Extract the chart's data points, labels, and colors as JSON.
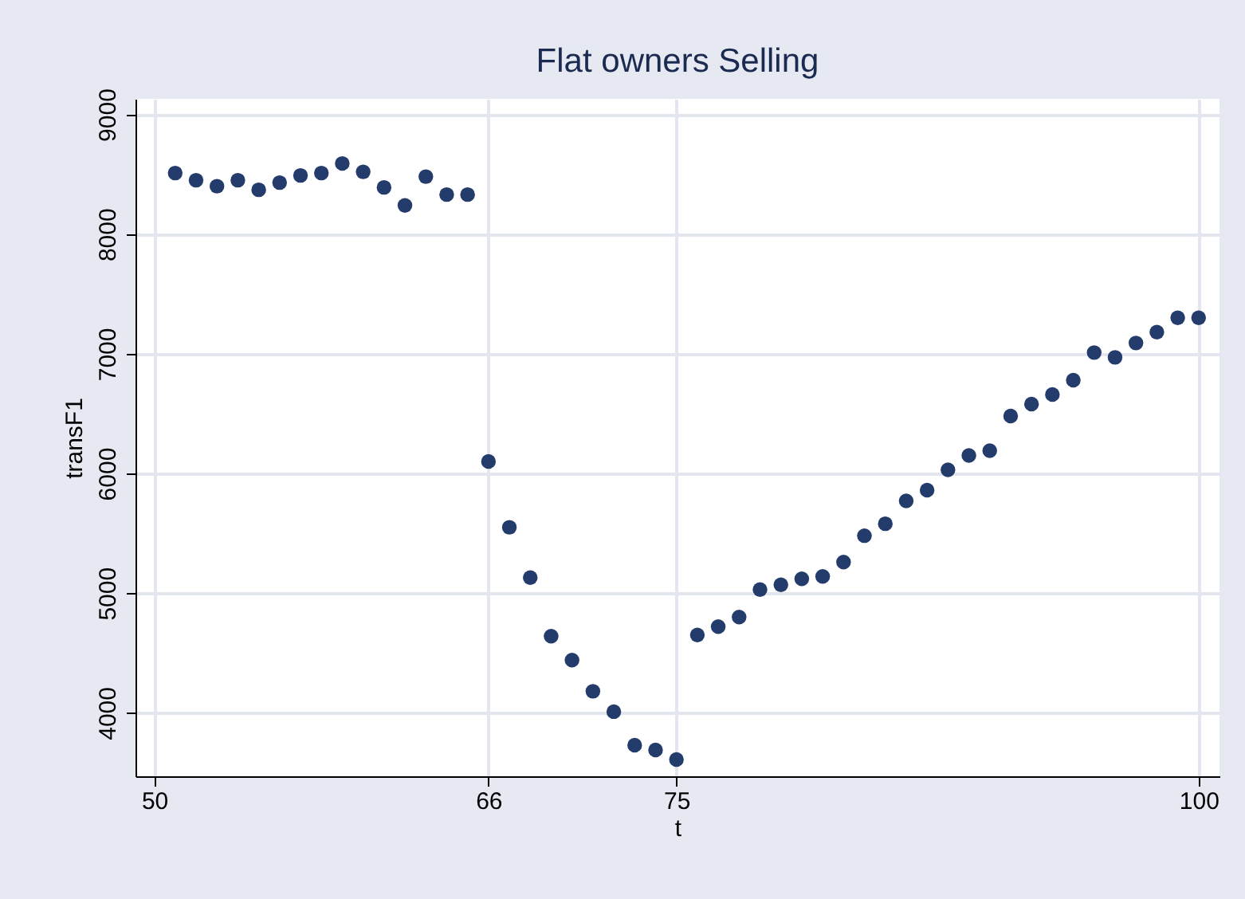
{
  "chart_data": {
    "type": "scatter",
    "title": "Flat owners Selling",
    "xlabel": "t",
    "ylabel": "transF1",
    "x": [
      51,
      52,
      53,
      54,
      55,
      56,
      57,
      58,
      59,
      60,
      61,
      62,
      63,
      64,
      65,
      66,
      67,
      68,
      69,
      70,
      71,
      72,
      73,
      74,
      75,
      76,
      77,
      78,
      79,
      80,
      81,
      82,
      83,
      84,
      85,
      86,
      87,
      88,
      89,
      90,
      91,
      92,
      93,
      94,
      95,
      96,
      97,
      98,
      99,
      100
    ],
    "series": [
      {
        "color": "#233c6b",
        "values": [
          8510,
          8450,
          8400,
          8450,
          8370,
          8430,
          8490,
          8510,
          8590,
          8520,
          8390,
          8240,
          8480,
          8330,
          8330,
          6100,
          5550,
          5130,
          4640,
          4440,
          4180,
          4010,
          3730,
          3690,
          3610,
          4650,
          4720,
          4800,
          5030,
          5070,
          5120,
          5140,
          5260,
          5480,
          5580,
          5770,
          5860,
          6030,
          6150,
          6190,
          6480,
          6580,
          6660,
          6780,
          7010,
          6970,
          7090,
          7180,
          7300,
          7300
        ]
      }
    ],
    "xlim": [
      49.1,
      101
    ],
    "ylim": [
      3470,
      9130
    ],
    "xticks": [
      50,
      66,
      75,
      100
    ],
    "yticks": [
      4000,
      5000,
      6000,
      7000,
      8000,
      9000
    ],
    "grid": true,
    "marker": "circle"
  }
}
